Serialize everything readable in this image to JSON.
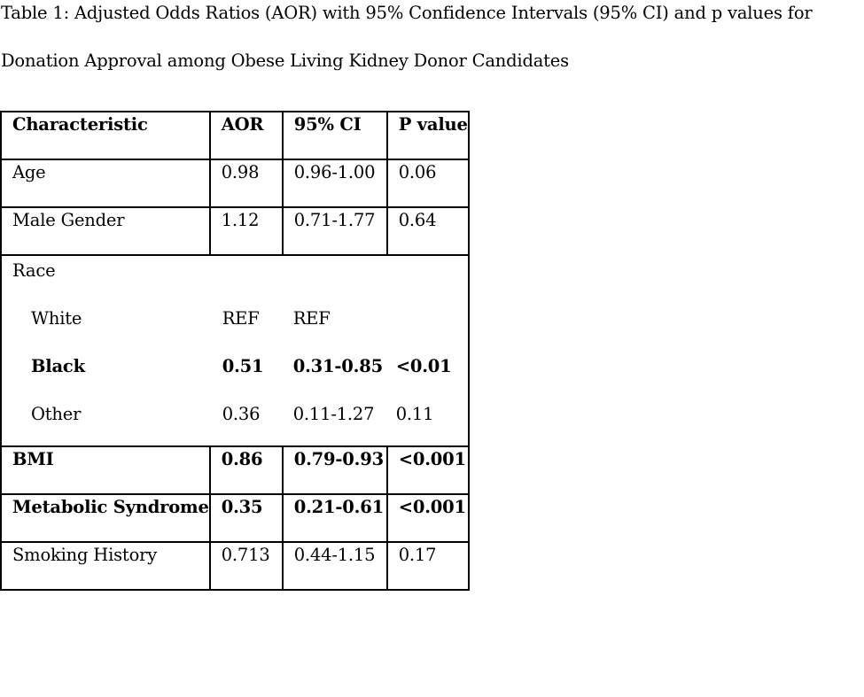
{
  "caption": {
    "line1": "Table 1: Adjusted Odds Ratios (AOR) with 95% Confidence  Intervals (95% CI) and p values for",
    "line2": "Donation Approval among Obese Living Kidney Donor Candidates"
  },
  "table": {
    "headers": [
      "Characteristic",
      "AOR",
      "95% CI",
      "P value"
    ],
    "age": {
      "label": "Age",
      "aor": "0.98",
      "ci": "0.96-1.00",
      "p": "0.06"
    },
    "male": {
      "label": "Male Gender",
      "aor": "1.12",
      "ci": "0.71-1.77",
      "p": "0.64"
    },
    "race": {
      "label": "Race",
      "white": {
        "label": "White",
        "aor": "REF",
        "ci": "REF",
        "p": ""
      },
      "black": {
        "label": "Black",
        "aor": "0.51",
        "ci": "0.31-0.85",
        "p": "<0.01"
      },
      "other": {
        "label": "Other",
        "aor": "0.36",
        "ci": "0.11-1.27",
        "p": "0.11"
      }
    },
    "bmi": {
      "label": "BMI",
      "aor": "0.86",
      "ci": "0.79-0.93",
      "p": "<0.001"
    },
    "metabolic": {
      "label": "Metabolic Syndrome",
      "aor": "0.35",
      "ci": "0.21-0.61",
      "p": "<0.001"
    },
    "smoking": {
      "label": "Smoking History",
      "aor": "0.713",
      "ci": "0.44-1.15",
      "p": "0.17"
    }
  }
}
